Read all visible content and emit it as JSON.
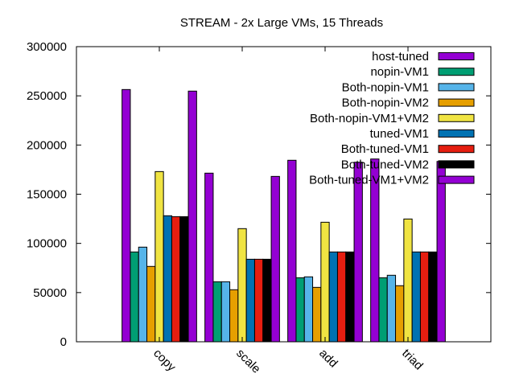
{
  "chart_data": {
    "type": "bar",
    "title": "STREAM - 2x Large VMs, 15 Threads",
    "xlabel": "",
    "ylabel": "",
    "ylim": [
      0,
      300000
    ],
    "yticks": [
      0,
      50000,
      100000,
      150000,
      200000,
      250000,
      300000
    ],
    "grid": false,
    "legend_position": "top-right",
    "categories": [
      "copy",
      "scale",
      "add",
      "triad"
    ],
    "series": [
      {
        "name": "host-tuned",
        "color": "#9400d3",
        "values": [
          256400,
          171400,
          184500,
          185800
        ]
      },
      {
        "name": "nopin-VM1",
        "color": "#009e73",
        "values": [
          91300,
          61000,
          65100,
          65100
        ]
      },
      {
        "name": "Both-nopin-VM1",
        "color": "#56b4e9",
        "values": [
          96200,
          61000,
          66000,
          67600
        ]
      },
      {
        "name": "Both-nopin-VM2",
        "color": "#e69f00",
        "values": [
          76600,
          52900,
          55300,
          57000
        ]
      },
      {
        "name": "Both-nopin-VM1+VM2",
        "color": "#f0e442",
        "values": [
          173000,
          115000,
          121500,
          124800
        ]
      },
      {
        "name": "tuned-VM1",
        "color": "#0072b2",
        "values": [
          128100,
          83900,
          91300,
          91300
        ]
      },
      {
        "name": "Both-tuned-VM1",
        "color": "#e51e10",
        "values": [
          127200,
          83900,
          91300,
          91300
        ]
      },
      {
        "name": "Both-tuned-VM2",
        "color": "#000000",
        "values": [
          127200,
          83900,
          91300,
          91300
        ]
      },
      {
        "name": "Both-tuned-VM1+VM2",
        "color": "#9400d3",
        "values": [
          254800,
          168100,
          182500,
          183300
        ]
      }
    ]
  }
}
